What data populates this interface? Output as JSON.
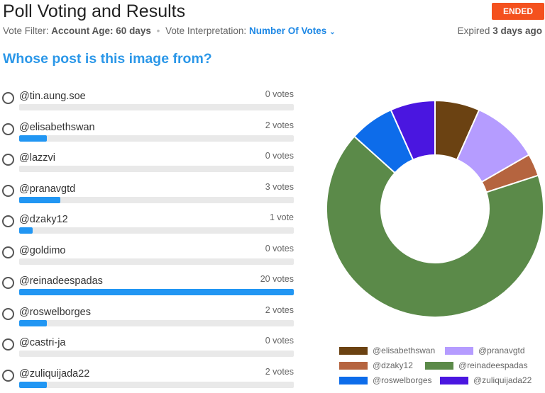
{
  "header": {
    "title": "Poll Voting and Results",
    "status_badge": "ENDED",
    "vote_filter_label": "Vote Filter:",
    "vote_filter_value": "Account Age: 60 days",
    "vote_interpretation_label": "Vote Interpretation:",
    "vote_interpretation_value": "Number Of Votes",
    "expired_prefix": "Expired",
    "expired_value": "3 days ago"
  },
  "question": "Whose post is this image from?",
  "options": [
    {
      "label": "@tin.aung.soe",
      "votes_text": "0 votes",
      "votes": 0
    },
    {
      "label": "@elisabethswan",
      "votes_text": "2 votes",
      "votes": 2
    },
    {
      "label": "@lazzvi",
      "votes_text": "0 votes",
      "votes": 0
    },
    {
      "label": "@pranavgtd",
      "votes_text": "3 votes",
      "votes": 3
    },
    {
      "label": "@dzaky12",
      "votes_text": "1 vote",
      "votes": 1
    },
    {
      "label": "@goldimo",
      "votes_text": "0 votes",
      "votes": 0
    },
    {
      "label": "@reinadeespadas",
      "votes_text": "20 votes",
      "votes": 20
    },
    {
      "label": "@roswelborges",
      "votes_text": "2 votes",
      "votes": 2
    },
    {
      "label": "@castri-ja",
      "votes_text": "0 votes",
      "votes": 0
    },
    {
      "label": "@zuliquijada22",
      "votes_text": "2 votes",
      "votes": 2
    }
  ],
  "colors": {
    "accent": "#2196f3",
    "ended": "#f4511e",
    "question": "#2b97e8"
  },
  "chart_data": {
    "type": "pie",
    "series": [
      {
        "name": "@elisabethswan",
        "value": 2,
        "color": "#6b4212"
      },
      {
        "name": "@pranavgtd",
        "value": 3,
        "color": "#b59cff"
      },
      {
        "name": "@dzaky12",
        "value": 1,
        "color": "#b5643f"
      },
      {
        "name": "@reinadeespadas",
        "value": 20,
        "color": "#5b8a49"
      },
      {
        "name": "@roswelborges",
        "value": 2,
        "color": "#0d6cea"
      },
      {
        "name": "@zuliquijada22",
        "value": 2,
        "color": "#4a16e0"
      }
    ]
  }
}
